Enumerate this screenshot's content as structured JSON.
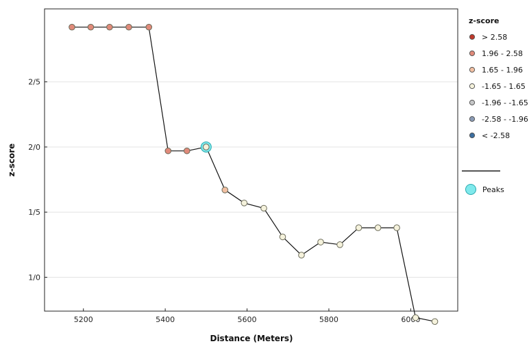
{
  "chart_data": {
    "type": "line",
    "xlabel": "Distance (Meters)",
    "ylabel": "z-score",
    "xlim": [
      5105,
      6115
    ],
    "ylim": [
      0.24,
      2.56
    ],
    "xticks": [
      5200,
      5400,
      5600,
      5800,
      6000
    ],
    "yticks": [
      {
        "value": 0.5,
        "label": "1/0"
      },
      {
        "value": 1.0,
        "label": "1/5"
      },
      {
        "value": 1.5,
        "label": "2/0"
      },
      {
        "value": 2.0,
        "label": "2/5"
      }
    ],
    "grid": "horizontal",
    "legend_position": "right",
    "series": [
      {
        "x": [
          5172,
          5218,
          5264,
          5311,
          5360,
          5407,
          5453,
          5500,
          5546,
          5593,
          5641,
          5687,
          5733,
          5780,
          5827,
          5873,
          5920,
          5966,
          6012,
          6059
        ],
        "y": [
          2.42,
          2.42,
          2.42,
          2.42,
          2.42,
          1.47,
          1.47,
          1.5,
          1.17,
          1.07,
          1.03,
          0.81,
          0.67,
          0.77,
          0.75,
          0.88,
          0.88,
          0.88,
          0.19,
          0.16
        ],
        "class": [
          "1.96 - 2.58",
          "1.96 - 2.58",
          "1.96 - 2.58",
          "1.96 - 2.58",
          "1.96 - 2.58",
          "1.96 - 2.58",
          "1.96 - 2.58",
          "-1.65 - 1.65",
          "1.65 - 1.96",
          "-1.65 - 1.65",
          "-1.65 - 1.65",
          "-1.65 - 1.65",
          "-1.65 - 1.65",
          "-1.65 - 1.65",
          "-1.65 - 1.65",
          "-1.65 - 1.65",
          "-1.65 - 1.65",
          "-1.65 - 1.65",
          "-1.65 - 1.65",
          "-1.65 - 1.65"
        ]
      }
    ],
    "peaks": [
      {
        "x": 5500,
        "y": 1.5
      }
    ],
    "legend": {
      "title": "z-score",
      "entries": [
        {
          "label": "> 2.58",
          "color": "#c0392b"
        },
        {
          "label": "1.96 - 2.58",
          "color": "#e08a7a"
        },
        {
          "label": "1.65 - 1.96",
          "color": "#f2c0a3"
        },
        {
          "label": "-1.65 - 1.65",
          "color": "#f5f2dc"
        },
        {
          "label": "-1.96 - -1.65",
          "color": "#c5c6c7"
        },
        {
          "label": "-2.58 - -1.96",
          "color": "#8a9bb5"
        },
        {
          "label": "< -2.58",
          "color": "#3c6fa0"
        }
      ],
      "line_color": "#555555",
      "peaks_label": "Peaks",
      "peaks_color": "#7fe9ec"
    }
  }
}
